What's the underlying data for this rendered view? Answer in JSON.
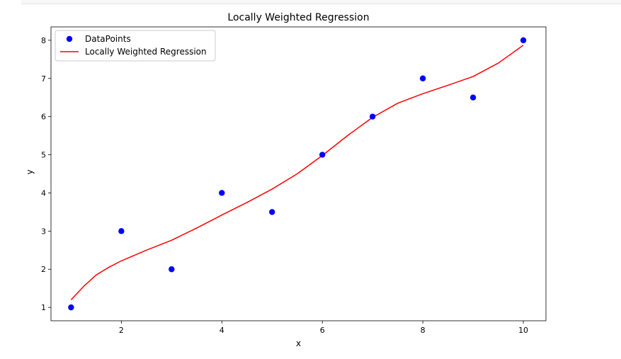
{
  "chart_data": {
    "type": "scatter",
    "title": "Locally Weighted Regression",
    "xlabel": "x",
    "ylabel": "y",
    "xlim": [
      0.6,
      10.45
    ],
    "ylim": [
      0.65,
      8.35
    ],
    "xticks": [
      2,
      4,
      6,
      8,
      10
    ],
    "yticks": [
      1,
      2,
      3,
      4,
      5,
      6,
      7,
      8
    ],
    "grid": false,
    "legend_position": "top-left",
    "series": [
      {
        "name": "DataPoints",
        "kind": "scatter",
        "color": "#0000ff",
        "points": [
          {
            "x": 1,
            "y": 1
          },
          {
            "x": 2,
            "y": 3
          },
          {
            "x": 3,
            "y": 2
          },
          {
            "x": 4,
            "y": 4
          },
          {
            "x": 5,
            "y": 3.5
          },
          {
            "x": 6,
            "y": 5
          },
          {
            "x": 7,
            "y": 6
          },
          {
            "x": 8,
            "y": 7
          },
          {
            "x": 9,
            "y": 6.5
          },
          {
            "x": 10,
            "y": 8
          }
        ]
      },
      {
        "name": "Locally Weighted Regression",
        "kind": "line",
        "color": "#ff0000",
        "points": [
          {
            "x": 1.0,
            "y": 1.2
          },
          {
            "x": 1.25,
            "y": 1.55
          },
          {
            "x": 1.5,
            "y": 1.85
          },
          {
            "x": 1.75,
            "y": 2.05
          },
          {
            "x": 2.0,
            "y": 2.22
          },
          {
            "x": 2.5,
            "y": 2.5
          },
          {
            "x": 3.0,
            "y": 2.76
          },
          {
            "x": 3.5,
            "y": 3.08
          },
          {
            "x": 4.0,
            "y": 3.42
          },
          {
            "x": 4.5,
            "y": 3.75
          },
          {
            "x": 5.0,
            "y": 4.1
          },
          {
            "x": 5.5,
            "y": 4.5
          },
          {
            "x": 6.0,
            "y": 4.98
          },
          {
            "x": 6.5,
            "y": 5.5
          },
          {
            "x": 7.0,
            "y": 5.98
          },
          {
            "x": 7.5,
            "y": 6.35
          },
          {
            "x": 8.0,
            "y": 6.6
          },
          {
            "x": 8.5,
            "y": 6.82
          },
          {
            "x": 9.0,
            "y": 7.05
          },
          {
            "x": 9.5,
            "y": 7.4
          },
          {
            "x": 10.0,
            "y": 7.87
          }
        ]
      }
    ]
  }
}
